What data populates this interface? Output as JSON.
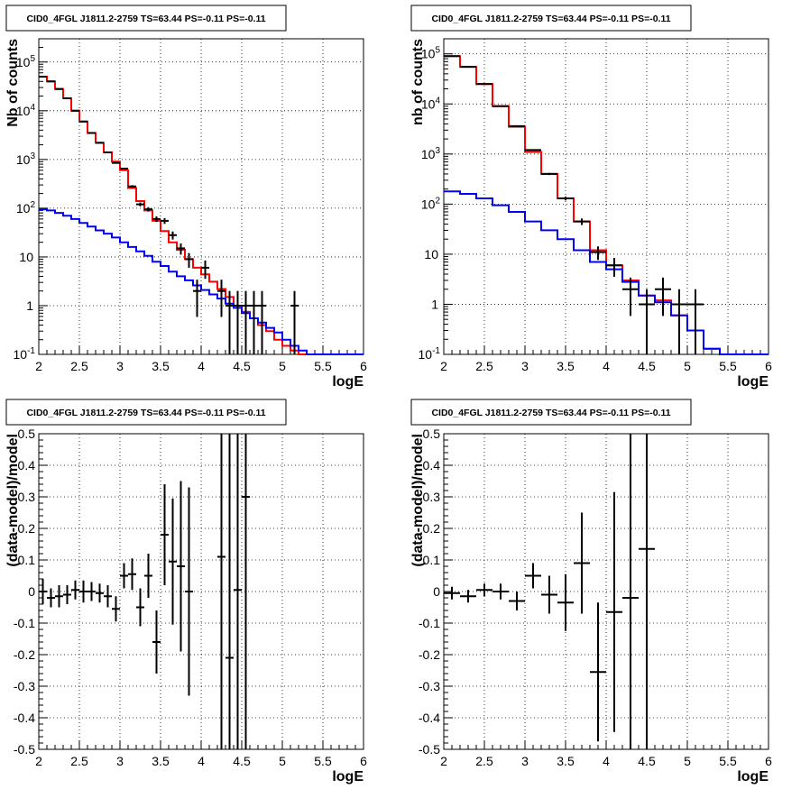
{
  "chart_data": [
    {
      "type": "line",
      "title": "CID0_4FGL J1811.2-2759 TS=63.44 PS=-0.11 PS=-0.11",
      "xlabel": "logE",
      "ylabel": "Nb of counts",
      "xlim": [
        2,
        6
      ],
      "ylim": [
        0.1,
        300000
      ],
      "yscale": "log",
      "grid": true,
      "x_ticks": [
        "2",
        "2.5",
        "3",
        "3.5",
        "4",
        "4.5",
        "5",
        "5.5",
        "6"
      ],
      "y_ticks": [
        "10^-1",
        "1",
        "10",
        "10^2",
        "10^3",
        "10^4",
        "10^5"
      ],
      "bin_width": 0.1,
      "series": [
        {
          "color": "#ff0000",
          "x": [
            2.05,
            2.15,
            2.25,
            2.35,
            2.45,
            2.55,
            2.65,
            2.75,
            2.85,
            2.95,
            3.05,
            3.15,
            3.25,
            3.35,
            3.45,
            3.55,
            3.65,
            3.75,
            3.85,
            3.95,
            4.05,
            4.15,
            4.25,
            4.35,
            4.45,
            4.55,
            4.65,
            4.75,
            4.85,
            4.95,
            5.05,
            5.15,
            5.25,
            5.35,
            5.45,
            5.55,
            5.65,
            5.75,
            5.85,
            5.95
          ],
          "values": [
            50000,
            40000,
            28000,
            18000,
            10000,
            6000,
            3500,
            2200,
            1400,
            900,
            600,
            260,
            140,
            90,
            55,
            34,
            20,
            14,
            9,
            6,
            4.4,
            3.1,
            2.2,
            1.5,
            1.0,
            0.75,
            0.55,
            0.4,
            0.3,
            0.2,
            0.15,
            0.12,
            0.1,
            0.1,
            0.1,
            0.1,
            0.1,
            0.1,
            0.1,
            0.1
          ]
        },
        {
          "color": "#0000ff",
          "x": [
            2.05,
            2.15,
            2.25,
            2.35,
            2.45,
            2.55,
            2.65,
            2.75,
            2.85,
            2.95,
            3.05,
            3.15,
            3.25,
            3.35,
            3.45,
            3.55,
            3.65,
            3.75,
            3.85,
            3.95,
            4.05,
            4.15,
            4.25,
            4.35,
            4.45,
            4.55,
            4.65,
            4.75,
            4.85,
            4.95,
            5.05,
            5.15,
            5.25,
            5.35,
            5.45,
            5.55,
            5.65,
            5.75,
            5.85,
            5.95
          ],
          "values": [
            95,
            90,
            80,
            70,
            60,
            50,
            42,
            35,
            30,
            25,
            20,
            16,
            13,
            10.5,
            8,
            6.5,
            5,
            4,
            3.3,
            2.6,
            2.1,
            1.7,
            1.4,
            1.1,
            0.9,
            0.7,
            0.55,
            0.45,
            0.35,
            0.28,
            0.2,
            0.15,
            0.12,
            0.1,
            0.1,
            0.1,
            0.1,
            0.1,
            0.1,
            0.1
          ]
        },
        {
          "color": "#000000",
          "kind": "points",
          "x": [
            2.05,
            2.15,
            2.25,
            2.35,
            2.45,
            2.55,
            2.65,
            2.75,
            2.85,
            2.95,
            3.05,
            3.15,
            3.25,
            3.35,
            3.45,
            3.55,
            3.65,
            3.75,
            3.85,
            3.95,
            4.05,
            4.25,
            4.35,
            4.45,
            4.55,
            4.65,
            4.75,
            5.15
          ],
          "values": [
            50000,
            40000,
            28000,
            18000,
            10000,
            6000,
            3500,
            2200,
            1400,
            850,
            650,
            280,
            120,
            95,
            60,
            55,
            28,
            15,
            9,
            2,
            6,
            2,
            1,
            1,
            1,
            1,
            1,
            1
          ]
        }
      ]
    },
    {
      "type": "line",
      "title": "CID0_4FGL J1811.2-2759 TS=63.44 PS=-0.11 PS=-0.11",
      "xlabel": "logE",
      "ylabel": "nb of counts",
      "xlim": [
        2,
        6
      ],
      "ylim": [
        0.1,
        200000
      ],
      "yscale": "log",
      "grid": true,
      "x_ticks": [
        "2",
        "2.5",
        "3",
        "3.5",
        "4",
        "4.5",
        "5",
        "5.5",
        "6"
      ],
      "y_ticks": [
        "10^-1",
        "1",
        "10",
        "10^2",
        "10^3",
        "10^4",
        "10^5"
      ],
      "bin_width": 0.2,
      "series": [
        {
          "color": "#ff0000",
          "x": [
            2.1,
            2.3,
            2.5,
            2.7,
            2.9,
            3.1,
            3.3,
            3.5,
            3.7,
            3.9,
            4.1,
            4.3,
            4.5,
            4.7,
            4.9,
            5.1,
            5.3,
            5.5,
            5.7,
            5.9
          ],
          "values": [
            90000,
            55000,
            25000,
            9000,
            3500,
            1100,
            400,
            130,
            45,
            12,
            6,
            3,
            1.5,
            1.2,
            0.6,
            0.3,
            0.13,
            0.1,
            0.1,
            0.1
          ]
        },
        {
          "color": "#0000ff",
          "x": [
            2.1,
            2.3,
            2.5,
            2.7,
            2.9,
            3.1,
            3.3,
            3.5,
            3.7,
            3.9,
            4.1,
            4.3,
            4.5,
            4.7,
            4.9,
            5.1,
            5.3,
            5.5,
            5.7,
            5.9
          ],
          "values": [
            180,
            160,
            130,
            95,
            70,
            45,
            30,
            20,
            12,
            7,
            5,
            2.8,
            1.5,
            1.1,
            0.6,
            0.3,
            0.13,
            0.1,
            0.1,
            0.1
          ]
        },
        {
          "color": "#000000",
          "kind": "points",
          "x": [
            2.1,
            2.3,
            2.5,
            2.7,
            2.9,
            3.1,
            3.3,
            3.5,
            3.7,
            3.9,
            4.1,
            4.3,
            4.5,
            4.7,
            4.9,
            5.1
          ],
          "values": [
            90000,
            55000,
            25000,
            9000,
            3600,
            1200,
            400,
            130,
            45,
            11,
            6,
            2,
            1,
            2,
            1,
            1
          ]
        }
      ]
    },
    {
      "type": "scatter",
      "title": "CID0_4FGL J1811.2-2759 TS=63.44 PS=-0.11 PS=-0.11",
      "xlabel": "logE",
      "ylabel": "(data-model)/model",
      "xlim": [
        2,
        6
      ],
      "ylim": [
        -0.5,
        0.5
      ],
      "grid": true,
      "x_ticks": [
        "2",
        "2.5",
        "3",
        "3.5",
        "4",
        "4.5",
        "5",
        "5.5",
        "6"
      ],
      "y_ticks": [
        "-0.5",
        "-0.4",
        "-0.3",
        "-0.2",
        "-0.1",
        "0",
        "0.1",
        "0.2",
        "0.3",
        "0.4",
        "0.5"
      ],
      "series": [
        {
          "color": "#000000",
          "x": [
            2.05,
            2.15,
            2.25,
            2.35,
            2.45,
            2.55,
            2.65,
            2.75,
            2.85,
            2.95,
            3.05,
            3.15,
            3.25,
            3.35,
            3.45,
            3.55,
            3.65,
            3.75,
            3.85,
            4.25,
            4.35,
            4.45,
            4.55
          ],
          "y": [
            0.0,
            -0.02,
            -0.015,
            -0.01,
            0.005,
            0.0,
            0.0,
            -0.005,
            -0.015,
            -0.055,
            0.05,
            0.055,
            -0.05,
            0.05,
            -0.16,
            0.18,
            0.095,
            0.08,
            0.0,
            0.11,
            -0.21,
            0.005,
            0.3
          ],
          "yerr": [
            0.04,
            0.03,
            0.035,
            0.03,
            0.03,
            0.035,
            0.03,
            0.03,
            0.035,
            0.04,
            0.04,
            0.05,
            0.06,
            0.07,
            0.1,
            0.16,
            0.2,
            0.27,
            0.33,
            1.0,
            1.0,
            1.0,
            1.0
          ],
          "xerr": 0.05
        }
      ]
    },
    {
      "type": "scatter",
      "title": "CID0_4FGL J1811.2-2759 TS=63.44 PS=-0.11 PS=-0.11",
      "xlabel": "logE",
      "ylabel": "(data-model)/model",
      "xlim": [
        2,
        6
      ],
      "ylim": [
        -0.5,
        0.5
      ],
      "grid": true,
      "x_ticks": [
        "2",
        "2.5",
        "3",
        "3.5",
        "4",
        "4.5",
        "5",
        "5.5",
        "6"
      ],
      "y_ticks": [
        "-0.5",
        "-0.4",
        "-0.3",
        "-0.2",
        "-0.1",
        "0",
        "0.1",
        "0.2",
        "0.3",
        "0.4",
        "0.5"
      ],
      "series": [
        {
          "color": "#000000",
          "x": [
            2.1,
            2.3,
            2.5,
            2.7,
            2.9,
            3.1,
            3.3,
            3.5,
            3.7,
            3.9,
            4.1,
            4.3,
            4.5
          ],
          "y": [
            -0.005,
            -0.015,
            0.005,
            0.0,
            -0.03,
            0.05,
            -0.01,
            -0.035,
            0.09,
            -0.255,
            -0.065,
            -0.02,
            0.135
          ],
          "yerr": [
            0.02,
            0.02,
            0.02,
            0.025,
            0.03,
            0.04,
            0.06,
            0.09,
            0.16,
            0.22,
            0.38,
            0.6,
            1.0
          ],
          "xerr": 0.1
        }
      ]
    }
  ]
}
